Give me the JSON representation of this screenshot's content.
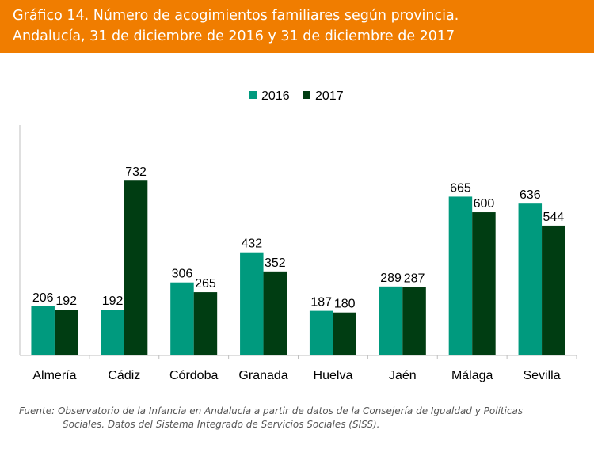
{
  "header": {
    "title_line1": "Gráfico 14. Número de acogimientos familiares según provincia.",
    "title_line2": "Andalucía, 31 de diciembre de 2016 y 31 de diciembre de 2017",
    "background_color": "#f07d00"
  },
  "chart_data": {
    "type": "bar",
    "title": "Gráfico 14. Número de acogimientos familiares según provincia. Andalucía, 31 de diciembre de 2016 y 31 de diciembre de 2017",
    "xlabel": "",
    "ylabel": "",
    "categories": [
      "Almería",
      "Cádiz",
      "Córdoba",
      "Granada",
      "Huelva",
      "Jaén",
      "Málaga",
      "Sevilla"
    ],
    "series": [
      {
        "name": "2016",
        "color": "#009a7e",
        "values": [
          206,
          192,
          306,
          432,
          187,
          289,
          665,
          636
        ]
      },
      {
        "name": "2017",
        "color": "#003d12",
        "values": [
          192,
          732,
          265,
          352,
          180,
          287,
          600,
          544
        ]
      }
    ],
    "ylim": [
      0,
      1000
    ],
    "grid": false,
    "legend": "top-center",
    "data_labels": true
  },
  "source": {
    "line1": "Fuente: Observatorio de la Infancia en Andalucía a partir de datos de la Consejería de Igualdad y Políticas",
    "line2": "Sociales. Datos del Sistema Integrado de Servicios Sociales (SISS)."
  }
}
